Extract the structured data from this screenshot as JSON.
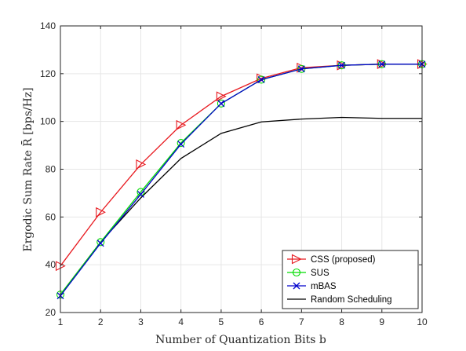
{
  "chart_data": {
    "type": "line",
    "xlabel": "Number of Quantization Bits b",
    "ylabel": "Ergodic Sum Rate R̄ [bps/Hz]",
    "x": [
      1,
      2,
      3,
      4,
      5,
      6,
      7,
      8,
      9,
      10
    ],
    "xlim": [
      1,
      10
    ],
    "ylim": [
      20,
      140
    ],
    "xticks": [
      "1",
      "2",
      "3",
      "4",
      "5",
      "6",
      "7",
      "8",
      "9",
      "10"
    ],
    "yticks": [
      "20",
      "40",
      "60",
      "80",
      "100",
      "120",
      "140"
    ],
    "grid": true,
    "legend_position": "bottom-right",
    "series": [
      {
        "name": "CSS (proposed)",
        "color": "#e8191f",
        "marker": "triangle-right",
        "values": [
          39.5,
          62,
          82,
          98.5,
          110.5,
          118,
          122.5,
          123.5,
          124,
          124
        ]
      },
      {
        "name": "SUS",
        "color": "#00dd00",
        "marker": "circle",
        "values": [
          27.5,
          49.5,
          70.5,
          91,
          107.5,
          117.5,
          122,
          123.5,
          124,
          124
        ]
      },
      {
        "name": "mBAS",
        "color": "#0000cc",
        "marker": "x",
        "values": [
          27,
          49,
          69.5,
          90.5,
          107.5,
          117.5,
          122,
          123.5,
          124,
          124
        ]
      },
      {
        "name": "Random Scheduling",
        "color": "#000000",
        "marker": "none",
        "values": [
          27.5,
          49.5,
          68,
          84.5,
          95,
          99.8,
          101,
          101.7,
          101.3,
          101.3
        ]
      }
    ]
  }
}
